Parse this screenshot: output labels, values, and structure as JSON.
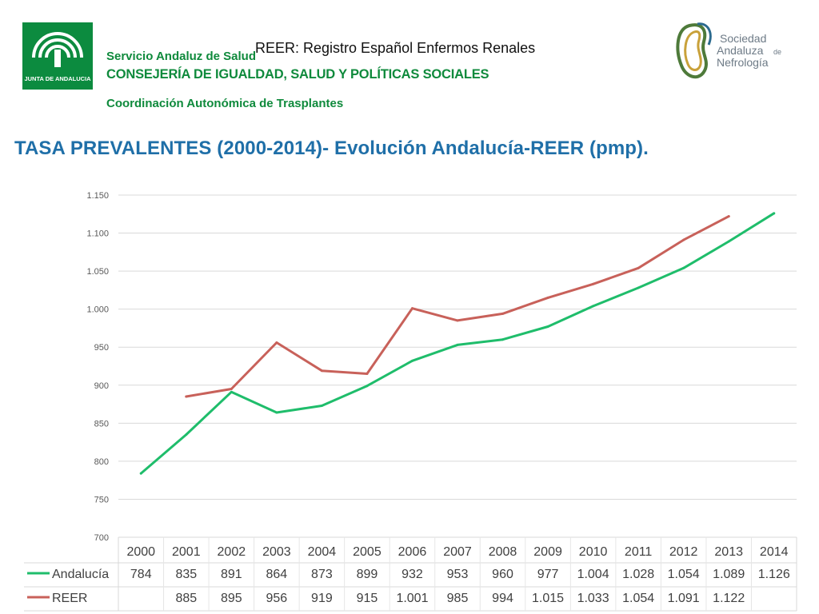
{
  "header": {
    "junta_logo_text": "JUNTA DE ANDALUCIA",
    "sas": "Servicio Andaluz de Salud",
    "consejeria": "CONSEJERÍA DE IGUALDAD, SALUD Y POLÍTICAS SOCIALES",
    "coordinacion": "Coordinación Autonómica de Trasplantes",
    "reer": "REER: Registro Español Enfermos Renales",
    "san_logo": {
      "line1": "Sociedad",
      "line2": "Andaluza",
      "line2_suffix": "de",
      "line3": "Nefrología"
    }
  },
  "title": "TASA PREVALENTES (2000-2014)- Evolución Andalucía-REER (pmp).",
  "chart_data": {
    "type": "line",
    "categories": [
      "2000",
      "2001",
      "2002",
      "2003",
      "2004",
      "2005",
      "2006",
      "2007",
      "2008",
      "2009",
      "2010",
      "2011",
      "2012",
      "2013",
      "2014"
    ],
    "ylim": [
      700,
      1150
    ],
    "yticks": [
      700,
      750,
      800,
      850,
      900,
      950,
      1000,
      1050,
      1100,
      1150
    ],
    "ytick_labels": [
      "700",
      "750",
      "800",
      "850",
      "900",
      "950",
      "1.000",
      "1.050",
      "1.100",
      "1.150"
    ],
    "grid": true,
    "legend": "data-table",
    "series": [
      {
        "name": "Andalucía",
        "color": "#1fbd6b",
        "values": [
          784,
          835,
          891,
          864,
          873,
          899,
          932,
          953,
          960,
          977,
          1004,
          1028,
          1054,
          1089,
          1126
        ],
        "labels": [
          "784",
          "835",
          "891",
          "864",
          "873",
          "899",
          "932",
          "953",
          "960",
          "977",
          "1.004",
          "1.028",
          "1.054",
          "1.089",
          "1.126"
        ]
      },
      {
        "name": "REER",
        "color": "#c8615a",
        "values": [
          null,
          885,
          895,
          956,
          919,
          915,
          1001,
          985,
          994,
          1015,
          1033,
          1054,
          1091,
          1122,
          null
        ],
        "labels": [
          "",
          "885",
          "895",
          "956",
          "919",
          "915",
          "1.001",
          "985",
          "994",
          "1.015",
          "1.033",
          "1.054",
          "1.091",
          "1.122",
          ""
        ]
      }
    ]
  }
}
